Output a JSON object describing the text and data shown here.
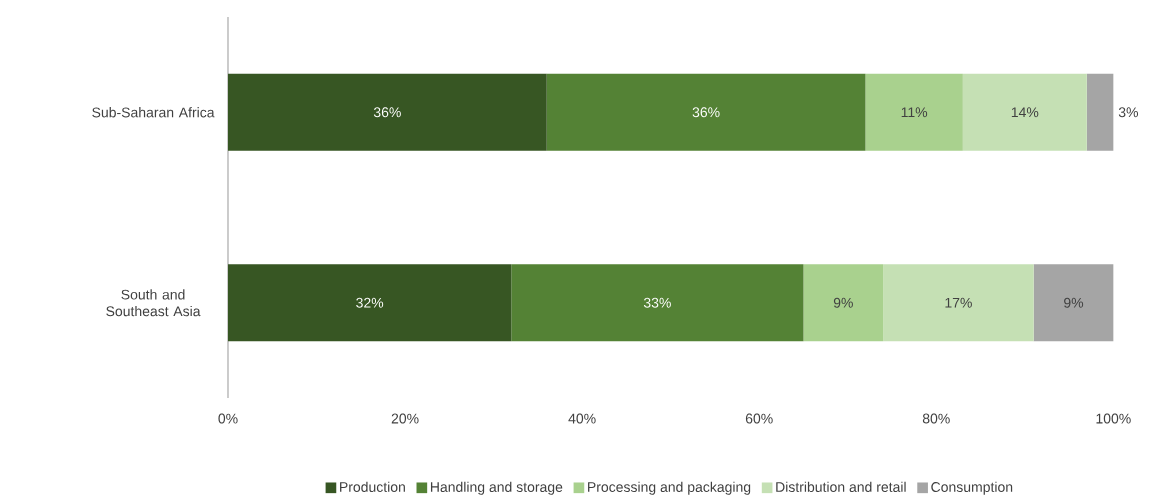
{
  "chart_data": {
    "type": "bar",
    "orientation": "horizontal",
    "stacked": true,
    "categories": [
      "Sub-Saharan Africa",
      "South and Southeast Asia"
    ],
    "series": [
      {
        "name": "Production",
        "color": "#375623",
        "values": [
          36,
          32
        ],
        "value_labels": [
          "36%",
          "32%"
        ]
      },
      {
        "name": "Handling and storage",
        "color": "#548235",
        "values": [
          36,
          33
        ],
        "value_labels": [
          "36%",
          "33%"
        ]
      },
      {
        "name": "Processing and packaging",
        "color": "#a9d18e",
        "values": [
          11,
          9
        ],
        "value_labels": [
          "11%",
          "9%"
        ]
      },
      {
        "name": "Distribution and retail",
        "color": "#c5e0b4",
        "values": [
          14,
          17
        ],
        "value_labels": [
          "14%",
          "17%"
        ]
      },
      {
        "name": "Consumption",
        "color": "#a5a5a5",
        "values": [
          3,
          9
        ],
        "value_labels": [
          "3%",
          "9%"
        ]
      }
    ],
    "xlim": [
      0,
      100
    ],
    "xticks": [
      {
        "value": 0,
        "label": "0%"
      },
      {
        "value": 20,
        "label": "20%"
      },
      {
        "value": 40,
        "label": "40%"
      },
      {
        "value": 60,
        "label": "60%"
      },
      {
        "value": 80,
        "label": "80%"
      },
      {
        "value": 100,
        "label": "100%"
      }
    ],
    "grid": false,
    "legend": "bottom"
  }
}
